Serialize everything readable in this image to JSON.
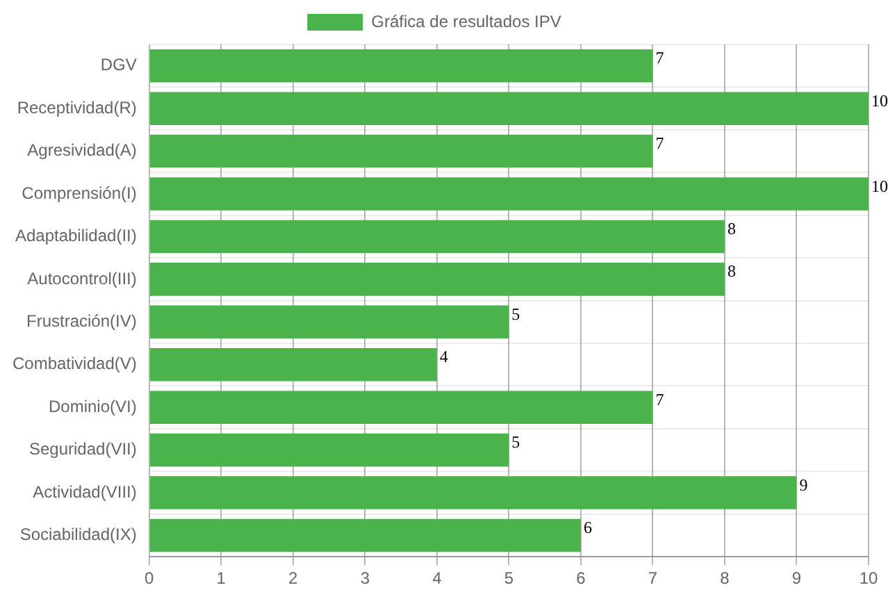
{
  "chart_data": {
    "type": "bar",
    "orientation": "horizontal",
    "categories": [
      "DGV",
      "Receptividad(R)",
      "Agresividad(A)",
      "Comprensión(I)",
      "Adaptabilidad(II)",
      "Autocontrol(III)",
      "Frustración(IV)",
      "Combatividad(V)",
      "Dominio(VI)",
      "Seguridad(VII)",
      "Actividad(VIII)",
      "Sociabilidad(IX)"
    ],
    "series": [
      {
        "name": "Gráfica de resultados IPV",
        "color": "#4bb34b",
        "values": [
          7,
          10,
          7,
          10,
          8,
          8,
          5,
          4,
          7,
          5,
          9,
          6
        ]
      }
    ],
    "xlim": [
      0,
      10
    ],
    "xticks": [
      0,
      1,
      2,
      3,
      4,
      5,
      6,
      7,
      8,
      9,
      10
    ],
    "grid": true,
    "legend": "top",
    "data_labels": true
  }
}
